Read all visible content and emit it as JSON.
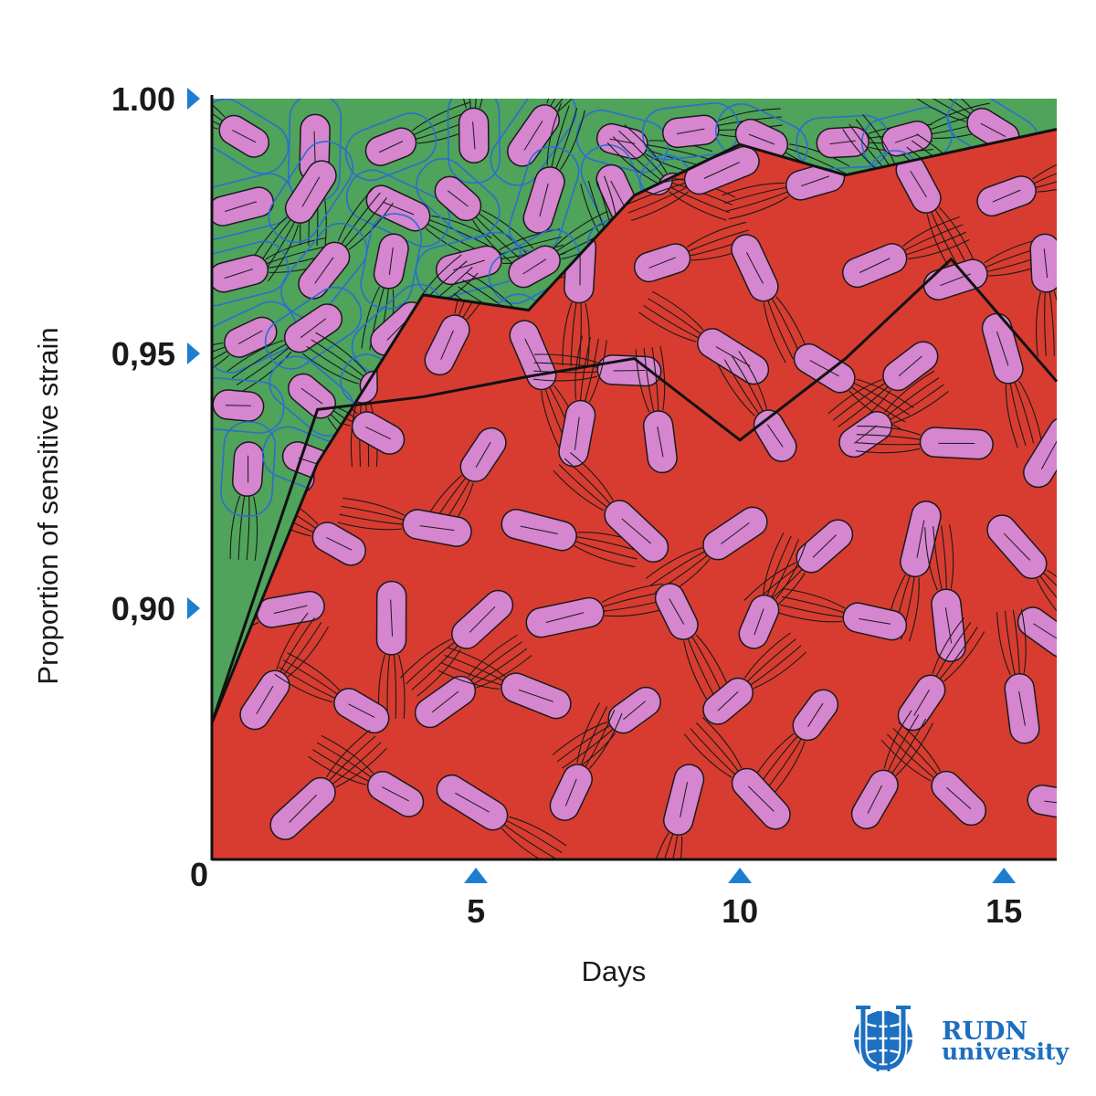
{
  "chart_data": {
    "type": "area",
    "title": "",
    "xlabel": "Days",
    "ylabel": "Proportion of sensitive strain",
    "x_ticks": [
      {
        "value": 5,
        "label": "5"
      },
      {
        "value": 10,
        "label": "10"
      },
      {
        "value": 15,
        "label": "15"
      }
    ],
    "y_ticks": [
      {
        "value": 1.0,
        "label": "1.00"
      },
      {
        "value": 0.95,
        "label": "0,95"
      },
      {
        "value": 0.9,
        "label": "0,90"
      },
      {
        "value": 0.75,
        "label": "0"
      }
    ],
    "xlim": [
      0,
      16
    ],
    "ylim_visible": [
      0.875,
      1.0
    ],
    "grid": false,
    "legend": "none",
    "background_series": {
      "name": "",
      "color": "#4fa35a",
      "value": 1.0
    },
    "series": [
      {
        "name": "",
        "color": "#d83c30",
        "x": [
          0,
          2,
          4,
          6,
          8,
          10,
          12,
          14,
          16
        ],
        "y": [
          0.8775,
          0.9285,
          0.9615,
          0.9585,
          0.981,
          0.991,
          0.985,
          0.9895,
          0.994
        ]
      },
      {
        "name": "",
        "color": "#000000",
        "x": [
          0,
          2,
          4,
          6,
          8,
          10,
          12,
          14,
          16
        ],
        "y": [
          0.8775,
          0.939,
          0.9415,
          0.9455,
          0.949,
          0.933,
          0.949,
          0.9685,
          0.9445
        ]
      }
    ]
  },
  "style": {
    "marker_color": "#1d7ed0",
    "cell_fill": "#d685cf",
    "logo_color": "#1d6fbf"
  },
  "logo": {
    "line1": "RUDN",
    "line2": "university"
  }
}
